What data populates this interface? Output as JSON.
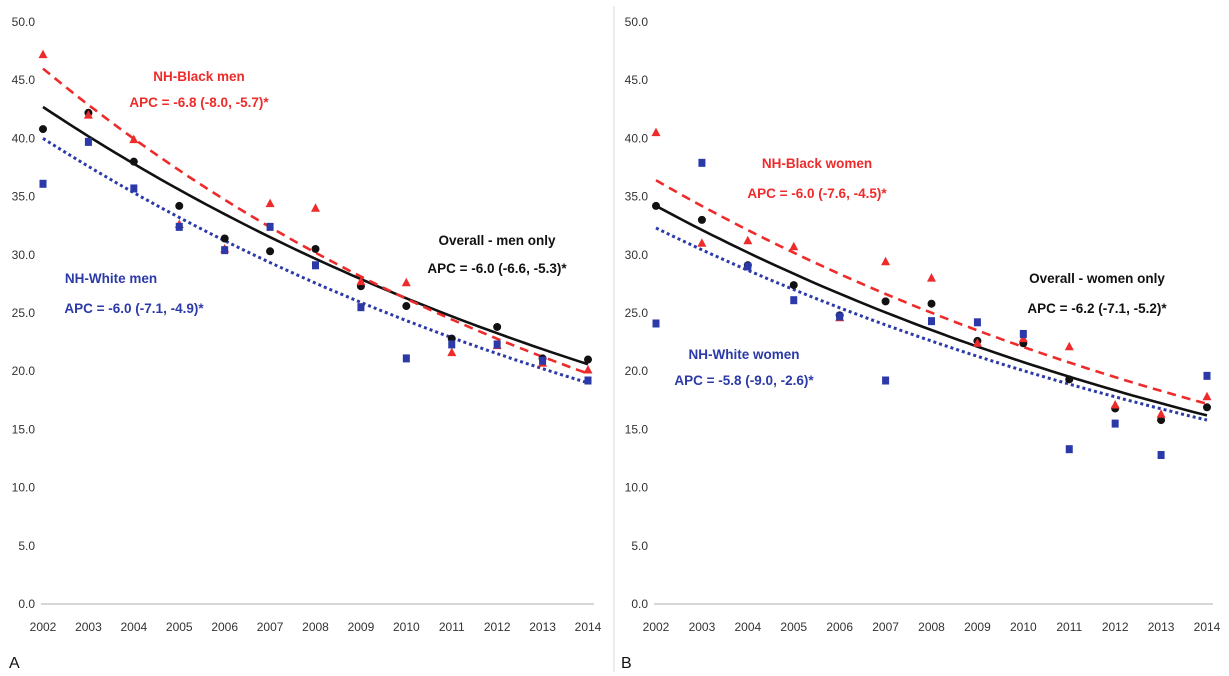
{
  "colors": {
    "black_series": "#111111",
    "nh_black": "#ee2b2b",
    "nh_white": "#2b3aa8",
    "axis": "#bfbfbf",
    "tick_text": "#333333",
    "annot_dark": "#111111"
  },
  "chart_data": [
    {
      "type": "scatter",
      "panel_label": "A",
      "x": [
        "2002",
        "2003",
        "2004",
        "2005",
        "2006",
        "2007",
        "2008",
        "2009",
        "2010",
        "2011",
        "2012",
        "2013",
        "2014"
      ],
      "yticks": [
        "0.0",
        "5.0",
        "10.0",
        "15.0",
        "20.0",
        "25.0",
        "30.0",
        "35.0",
        "40.0",
        "45.0",
        "50.0"
      ],
      "ylim": [
        0,
        50
      ],
      "series": [
        {
          "key": "overall",
          "marker": "circle",
          "color": "#111111",
          "line": "solid",
          "values": [
            40.8,
            42.2,
            38.0,
            34.2,
            31.4,
            30.3,
            30.5,
            27.3,
            25.6,
            22.8,
            23.8,
            21.1,
            21.0
          ],
          "trend": [
            42.7,
            20.6
          ]
        },
        {
          "key": "nh_black",
          "marker": "triangle",
          "color": "#ee2b2b",
          "line": "dashed",
          "values": [
            47.2,
            42.0,
            39.9,
            32.6,
            30.5,
            34.4,
            34.0,
            27.7,
            27.6,
            21.6,
            22.2,
            20.7,
            20.1
          ],
          "trend": [
            46.0,
            19.8
          ]
        },
        {
          "key": "nh_white",
          "marker": "square",
          "color": "#2b3aa8",
          "line": "dotted",
          "values": [
            36.1,
            39.7,
            35.7,
            32.4,
            30.4,
            32.4,
            29.1,
            25.5,
            21.1,
            22.3,
            22.3,
            20.9,
            19.2
          ],
          "trend": [
            40.0,
            19.0
          ]
        }
      ],
      "annotations": [
        {
          "key": "nh_black_title",
          "text": "NH-Black men",
          "color": "#ee2b2b"
        },
        {
          "key": "nh_black_apc",
          "text": "APC = -6.8 (-8.0, -5.7)*",
          "color": "#ee2b2b"
        },
        {
          "key": "overall_title",
          "text": "Overall - men only",
          "color": "#111111"
        },
        {
          "key": "overall_apc",
          "text": "APC = -6.0 (-6.6, -5.3)*",
          "color": "#111111"
        },
        {
          "key": "nh_white_title",
          "text": "NH-White men",
          "color": "#2b3aa8"
        },
        {
          "key": "nh_white_apc",
          "text": "APC = -6.0 (-7.1, -4.9)*",
          "color": "#2b3aa8"
        }
      ],
      "grid": false
    },
    {
      "type": "scatter",
      "panel_label": "B",
      "x": [
        "2002",
        "2003",
        "2004",
        "2005",
        "2006",
        "2007",
        "2008",
        "2009",
        "2010",
        "2011",
        "2012",
        "2013",
        "2014"
      ],
      "yticks": [
        "0.0",
        "5.0",
        "10.0",
        "15.0",
        "20.0",
        "25.0",
        "30.0",
        "35.0",
        "40.0",
        "45.0",
        "50.0"
      ],
      "ylim": [
        0,
        50
      ],
      "series": [
        {
          "key": "overall",
          "marker": "circle",
          "color": "#111111",
          "line": "solid",
          "values": [
            34.2,
            33.0,
            29.1,
            27.4,
            24.8,
            26.0,
            25.8,
            22.6,
            22.4,
            19.3,
            16.8,
            15.8,
            16.9
          ],
          "trend": [
            34.2,
            16.2
          ]
        },
        {
          "key": "nh_black",
          "marker": "triangle",
          "color": "#ee2b2b",
          "line": "dashed",
          "values": [
            40.5,
            31.0,
            31.2,
            30.7,
            24.6,
            29.4,
            28.0,
            22.4,
            22.8,
            22.1,
            17.1,
            16.3,
            17.8
          ],
          "trend": [
            36.4,
            17.2
          ]
        },
        {
          "key": "nh_white",
          "marker": "square",
          "color": "#2b3aa8",
          "line": "dotted",
          "values": [
            24.1,
            37.9,
            29.0,
            26.1,
            24.7,
            19.2,
            24.3,
            24.2,
            23.2,
            13.3,
            15.5,
            12.8,
            19.6
          ],
          "trend": [
            32.3,
            15.8
          ]
        }
      ],
      "annotations": [
        {
          "key": "nh_black_title",
          "text": "NH-Black women",
          "color": "#ee2b2b"
        },
        {
          "key": "nh_black_apc",
          "text": "APC = -6.0 (-7.6, -4.5)*",
          "color": "#ee2b2b"
        },
        {
          "key": "overall_title",
          "text": "Overall - women only",
          "color": "#111111"
        },
        {
          "key": "overall_apc",
          "text": "APC = -6.2 (-7.1, -5.2)*",
          "color": "#111111"
        },
        {
          "key": "nh_white_title",
          "text": "NH-White women",
          "color": "#2b3aa8"
        },
        {
          "key": "nh_white_apc",
          "text": "APC = -5.8 (-9.0, -2.6)*",
          "color": "#2b3aa8"
        }
      ],
      "grid": false
    }
  ]
}
